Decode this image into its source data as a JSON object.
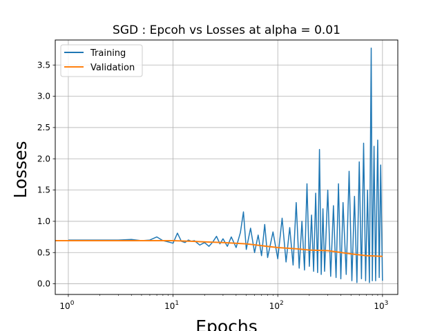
{
  "chart_data": {
    "type": "line",
    "title": "SGD : Epcoh vs Losses at alpha = 0.01",
    "xlabel": "Epochs",
    "ylabel": "Losses",
    "xscale": "log",
    "xlim": [
      0.75,
      1400
    ],
    "ylim": [
      -0.17,
      3.9
    ],
    "grid": true,
    "legend_position": "top-left",
    "x_ticks": [
      {
        "value": 1,
        "base": "10",
        "exp": "0"
      },
      {
        "value": 10,
        "base": "10",
        "exp": "1"
      },
      {
        "value": 100,
        "base": "10",
        "exp": "2"
      },
      {
        "value": 1000,
        "base": "10",
        "exp": "3"
      }
    ],
    "y_ticks": [
      "0.0",
      "0.5",
      "1.0",
      "1.5",
      "2.0",
      "2.5",
      "3.0",
      "3.5"
    ],
    "series": [
      {
        "name": "Training",
        "color": "#1f77b4",
        "x": [
          1,
          2,
          3,
          4,
          5,
          6,
          7,
          8,
          9,
          10,
          11,
          12,
          13,
          14,
          15,
          16,
          18,
          20,
          22,
          24,
          26,
          28,
          30,
          33,
          36,
          40,
          44,
          47,
          50,
          55,
          60,
          65,
          70,
          75,
          80,
          90,
          100,
          110,
          120,
          130,
          140,
          150,
          160,
          170,
          180,
          190,
          200,
          210,
          220,
          230,
          240,
          250,
          260,
          270,
          280,
          300,
          320,
          340,
          360,
          380,
          400,
          420,
          450,
          480,
          510,
          540,
          570,
          600,
          630,
          660,
          690,
          720,
          750,
          780,
          800,
          830,
          860,
          900,
          930,
          960,
          1000
        ],
        "values": [
          0.7,
          0.7,
          0.7,
          0.71,
          0.69,
          0.7,
          0.75,
          0.69,
          0.67,
          0.65,
          0.81,
          0.68,
          0.66,
          0.7,
          0.68,
          0.69,
          0.62,
          0.66,
          0.6,
          0.67,
          0.76,
          0.64,
          0.72,
          0.6,
          0.75,
          0.58,
          0.82,
          1.15,
          0.55,
          0.89,
          0.5,
          0.78,
          0.45,
          0.95,
          0.42,
          0.83,
          0.4,
          1.05,
          0.35,
          0.9,
          0.3,
          1.3,
          0.25,
          1.0,
          0.22,
          1.6,
          0.28,
          1.1,
          0.2,
          1.45,
          0.18,
          2.15,
          0.15,
          1.2,
          0.2,
          1.5,
          0.12,
          1.25,
          0.1,
          1.6,
          0.08,
          1.3,
          0.15,
          1.8,
          0.05,
          1.4,
          0.02,
          1.95,
          0.08,
          2.25,
          0.05,
          1.5,
          0.02,
          3.77,
          0.05,
          2.2,
          0.05,
          2.3,
          0.1,
          1.9,
          0.05
        ]
      },
      {
        "name": "Validation",
        "color": "#ff7f0e",
        "x": [
          0.75,
          1,
          2,
          3,
          5,
          7,
          10,
          15,
          20,
          30,
          50,
          70,
          100,
          150,
          200,
          300,
          500,
          700,
          1000
        ],
        "values": [
          0.69,
          0.69,
          0.69,
          0.69,
          0.69,
          0.69,
          0.69,
          0.68,
          0.67,
          0.66,
          0.64,
          0.61,
          0.58,
          0.56,
          0.54,
          0.53,
          0.48,
          0.45,
          0.44
        ]
      }
    ]
  }
}
